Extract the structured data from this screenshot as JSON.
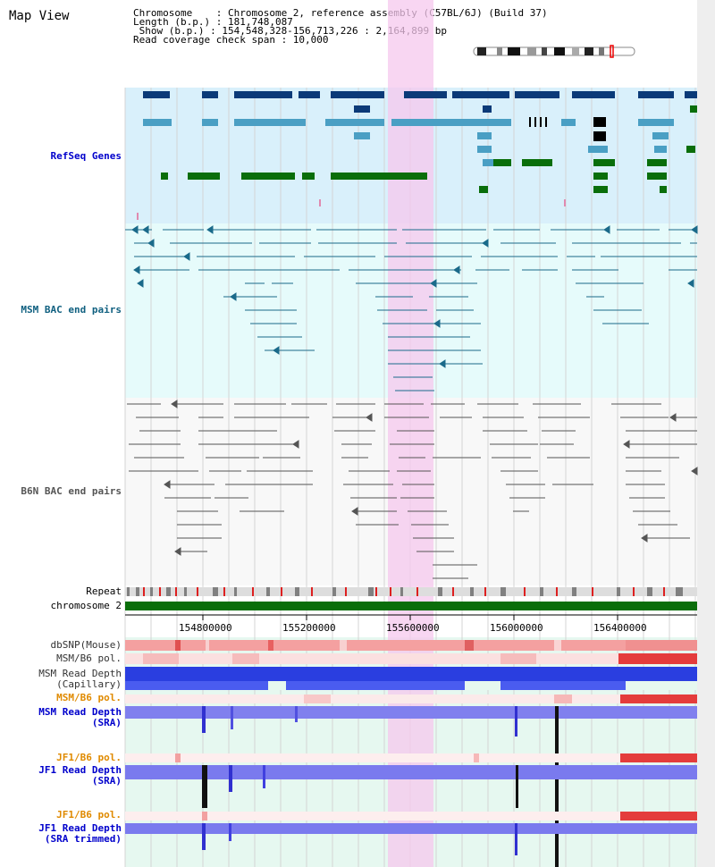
{
  "header": {
    "title": "Map View",
    "chromosome_label": "Chromosome    : Chromosome 2, reference assembly (C57BL/6J) (Build 37)",
    "length_label": "Length (b.p.) : 181,748,087",
    "show_label": " Show (b.p.) : 154,548,328-156,713,226 : 2,164,899 bp",
    "span_label": "Read coverage check span : 10,000"
  },
  "tracks": {
    "refseq": "RefSeq Genes",
    "msm_bac": "MSM BAC end pairs",
    "b6n_bac": "B6N BAC end pairs",
    "repeat": "Repeat",
    "chromosome": "chromosome 2",
    "dbsnp": "dbSNP(Mouse)",
    "msm_b6_pol": "MSM/B6 pol.",
    "msm_depth_cap_1": "MSM Read Depth",
    "msm_depth_cap_2": "(Capillary)",
    "msm_b6_pol2": "MSM/B6 pol.",
    "msm_depth_sra_1": "MSM Read Depth",
    "msm_depth_sra_2": "(SRA)",
    "jf1_b6_pol": "JF1/B6 pol.",
    "jf1_depth_sra_1": "JF1 Read Depth",
    "jf1_depth_sra_2": "(SRA)",
    "jf1_b6_pol2": "JF1/B6 pol.",
    "jf1_depth_trim_1": "JF1 Read Depth",
    "jf1_depth_trim_2": "(SRA trimmed)"
  },
  "axis": {
    "ticks": [
      "154800000",
      "155200000",
      "155600000",
      "156000000",
      "156400000"
    ]
  },
  "colors": {
    "refseq_bg": "#d9f0fb",
    "bac_bg": "#e6fbfb",
    "b6n_bg": "#f7f7f7",
    "highlight": "#f7d0f0",
    "gene_dark": "#0b3a78",
    "gene_mid": "#4a9fc4",
    "gene_green": "#0a6e0a",
    "msm_line": "#1a6a8a",
    "b6n_line": "#555555",
    "chromosome": "#0a6e0a",
    "depth_blue": "#2233dd",
    "depth_light": "#8888ee",
    "pol_red": "#e03030",
    "label_blue": "#0000cc",
    "label_orange": "#e08a00",
    "label_teal": "#106080"
  }
}
